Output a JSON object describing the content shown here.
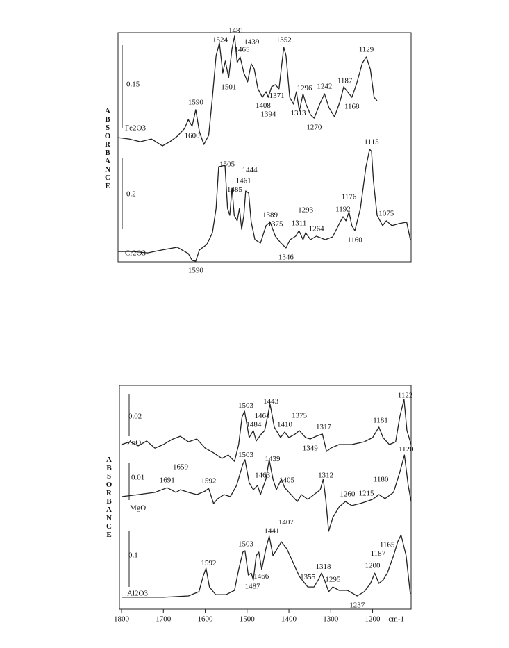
{
  "chart_data": [
    {
      "type": "line",
      "ylabel": "ABSORBANCE",
      "xlim": [
        1800,
        1008
      ],
      "ylim": [
        0,
        100
      ],
      "series": [
        {
          "name": "Fe2O3",
          "color": "#222222",
          "scale": 0.15,
          "x": [
            1800,
            1770,
            1740,
            1710,
            1680,
            1660,
            1640,
            1620,
            1610,
            1600,
            1590,
            1580,
            1568,
            1555,
            1545,
            1535,
            1526,
            1517,
            1510,
            1501,
            1492,
            1485,
            1478,
            1470,
            1460,
            1450,
            1440,
            1432,
            1422,
            1410,
            1400,
            1394,
            1385,
            1375,
            1365,
            1358,
            1352,
            1346,
            1336,
            1326,
            1318,
            1310,
            1300,
            1292,
            1280,
            1270,
            1255,
            1242,
            1230,
            1215,
            1200,
            1190,
            1180,
            1168,
            1155,
            1140,
            1129,
            1118,
            1108,
            1100
          ],
          "values": [
            54.2,
            53.6,
            52.4,
            53.6,
            50.6,
            52.4,
            54.8,
            58.2,
            62.1,
            59.1,
            66.4,
            56.7,
            51.2,
            55.2,
            71.8,
            90.0,
            95.5,
            82.4,
            87.6,
            80.3,
            93.0,
            98.5,
            87.0,
            89.4,
            82.4,
            78.5,
            86.4,
            84.2,
            75.5,
            71.8,
            74.2,
            71.8,
            76.4,
            77.3,
            75.5,
            85.5,
            93.6,
            90.0,
            71.8,
            68.8,
            74.2,
            65.8,
            73.3,
            68.8,
            64.2,
            62.7,
            68.8,
            73.3,
            67.3,
            63.3,
            70.0,
            76.4,
            74.2,
            71.8,
            77.9,
            86.7,
            89.4,
            83.9,
            71.8,
            70.3
          ],
          "peaks": [
            1600,
            1590,
            1524,
            1501,
            1481,
            1465,
            1439,
            1408,
            1394,
            1371,
            1352,
            1313,
            1296,
            1270,
            1242,
            1187,
            1168,
            1129
          ]
        },
        {
          "name": "Cr2O3",
          "color": "#222222",
          "scale": 0.2,
          "x": [
            1800,
            1760,
            1720,
            1680,
            1640,
            1610,
            1600,
            1590,
            1580,
            1560,
            1545,
            1535,
            1528,
            1511,
            1504,
            1498,
            1492,
            1486,
            1478,
            1472,
            1466,
            1460,
            1455,
            1447,
            1440,
            1430,
            1415,
            1400,
            1389,
            1375,
            1360,
            1346,
            1335,
            1320,
            1311,
            1300,
            1293,
            1280,
            1264,
            1240,
            1220,
            1200,
            1192,
            1184,
            1176,
            1168,
            1160,
            1145,
            1130,
            1120,
            1115,
            1110,
            1100,
            1085,
            1075,
            1060,
            1040,
            1020,
            1010
          ],
          "values": [
            4.5,
            4.5,
            3.9,
            5.2,
            6.4,
            3.6,
            0.6,
            0.3,
            5.2,
            7.6,
            12.7,
            23.3,
            41.5,
            42.1,
            23.3,
            20.3,
            32.4,
            20.3,
            17.9,
            23.3,
            14.2,
            20.3,
            30.9,
            30.0,
            17.3,
            9.7,
            8.2,
            15.8,
            17.3,
            11.2,
            8.2,
            6.1,
            9.7,
            11.2,
            13.6,
            9.7,
            12.7,
            9.7,
            11.2,
            9.7,
            10.9,
            17.3,
            19.7,
            17.9,
            21.8,
            15.8,
            13.6,
            23.3,
            41.5,
            49.1,
            48.2,
            35.5,
            20.3,
            15.8,
            17.9,
            15.8,
            16.7,
            17.3,
            9.7
          ],
          "peaks": [
            1590,
            1505,
            1485,
            1461,
            1444,
            1389,
            1375,
            1346,
            1311,
            1293,
            1264,
            1192,
            1176,
            1160,
            1115,
            1075
          ]
        }
      ]
    },
    {
      "type": "line",
      "ylabel": "ABSORBANCE",
      "xlim": [
        1805,
        1108
      ],
      "ylim": [
        0,
        100
      ],
      "xticks": [
        1800,
        1700,
        1600,
        1500,
        1400,
        1300,
        1200
      ],
      "xlabel": "cm-1",
      "series": [
        {
          "name": "ZnO",
          "color": "#222222",
          "scale": 0.02,
          "x": [
            1800,
            1780,
            1760,
            1740,
            1720,
            1700,
            1680,
            1660,
            1640,
            1620,
            1600,
            1580,
            1560,
            1545,
            1530,
            1520,
            1512,
            1506,
            1495,
            1485,
            1478,
            1466,
            1458,
            1445,
            1435,
            1420,
            1410,
            1400,
            1385,
            1375,
            1360,
            1349,
            1335,
            1320,
            1310,
            1300,
            1280,
            1250,
            1220,
            1200,
            1185,
            1175,
            1160,
            1145,
            1135,
            1125,
            1118,
            1108
          ],
          "values": [
            73.6,
            74.8,
            73.0,
            75.2,
            72.0,
            73.6,
            75.8,
            77.3,
            74.8,
            76.1,
            72.0,
            69.9,
            67.4,
            68.9,
            66.1,
            73.6,
            86.0,
            88.5,
            76.7,
            79.8,
            75.2,
            78.3,
            79.8,
            91.6,
            81.4,
            76.7,
            79.2,
            76.7,
            78.3,
            79.8,
            76.7,
            76.1,
            77.3,
            78.3,
            70.5,
            72.0,
            73.6,
            73.6,
            74.8,
            76.7,
            81.4,
            76.7,
            73.6,
            74.8,
            86.0,
            93.8,
            79.8,
            73.6
          ],
          "peaks": [
            1503,
            1484,
            1464,
            1443,
            1410,
            1375,
            1349,
            1317,
            1181,
            1122
          ]
        },
        {
          "name": "MgO",
          "color": "#222222",
          "scale": 0.01,
          "x": [
            1800,
            1760,
            1720,
            1691,
            1670,
            1659,
            1640,
            1620,
            1600,
            1592,
            1580,
            1570,
            1555,
            1540,
            1525,
            1510,
            1505,
            1495,
            1485,
            1475,
            1468,
            1455,
            1447,
            1438,
            1430,
            1418,
            1410,
            1395,
            1380,
            1370,
            1355,
            1340,
            1325,
            1318,
            1312,
            1305,
            1295,
            1280,
            1265,
            1250,
            1230,
            1215,
            1200,
            1185,
            1170,
            1150,
            1135,
            1124,
            1115,
            1108
          ],
          "values": [
            50.3,
            51.2,
            52.2,
            54.3,
            52.2,
            53.4,
            52.2,
            51.2,
            52.8,
            54.0,
            47.2,
            49.4,
            51.2,
            50.3,
            55.3,
            64.9,
            66.8,
            56.5,
            53.4,
            55.3,
            51.2,
            58.1,
            66.8,
            58.1,
            53.4,
            58.1,
            54.3,
            51.2,
            48.1,
            51.2,
            49.1,
            51.2,
            53.4,
            58.1,
            49.1,
            34.8,
            41.0,
            45.7,
            48.1,
            46.3,
            47.2,
            48.1,
            49.1,
            51.2,
            49.4,
            52.2,
            61.2,
            68.9,
            55.3,
            48.1
          ],
          "peaks": [
            1691,
            1659,
            1592,
            1503,
            1463,
            1439,
            1405,
            1312,
            1260,
            1215,
            1180,
            1120
          ]
        },
        {
          "name": "Al2O3",
          "color": "#222222",
          "scale": 0.1,
          "x": [
            1800,
            1700,
            1640,
            1615,
            1605,
            1598,
            1590,
            1575,
            1550,
            1530,
            1520,
            1510,
            1505,
            1497,
            1490,
            1485,
            1478,
            1472,
            1465,
            1455,
            1447,
            1438,
            1428,
            1418,
            1405,
            1390,
            1375,
            1355,
            1340,
            1330,
            1322,
            1315,
            1305,
            1295,
            1280,
            1260,
            1237,
            1220,
            1205,
            1195,
            1185,
            1175,
            1165,
            1150,
            1140,
            1132,
            1120,
            1110
          ],
          "values": [
            5.3,
            5.3,
            5.9,
            7.8,
            14.6,
            18.3,
            9.9,
            6.5,
            6.5,
            8.4,
            17.7,
            25.5,
            26.1,
            15.2,
            16.1,
            13.0,
            23.9,
            25.5,
            17.7,
            27.0,
            32.6,
            23.9,
            27.0,
            30.1,
            27.0,
            20.8,
            14.6,
            9.9,
            9.9,
            13.0,
            16.1,
            13.0,
            7.8,
            9.9,
            8.4,
            8.4,
            5.9,
            7.8,
            11.5,
            16.1,
            11.5,
            13.0,
            16.1,
            23.9,
            30.1,
            33.2,
            23.9,
            6.8
          ],
          "peaks": [
            1592,
            1503,
            1487,
            1466,
            1441,
            1407,
            1355,
            1318,
            1295,
            1237,
            1200,
            1187,
            1165
          ]
        }
      ]
    }
  ]
}
